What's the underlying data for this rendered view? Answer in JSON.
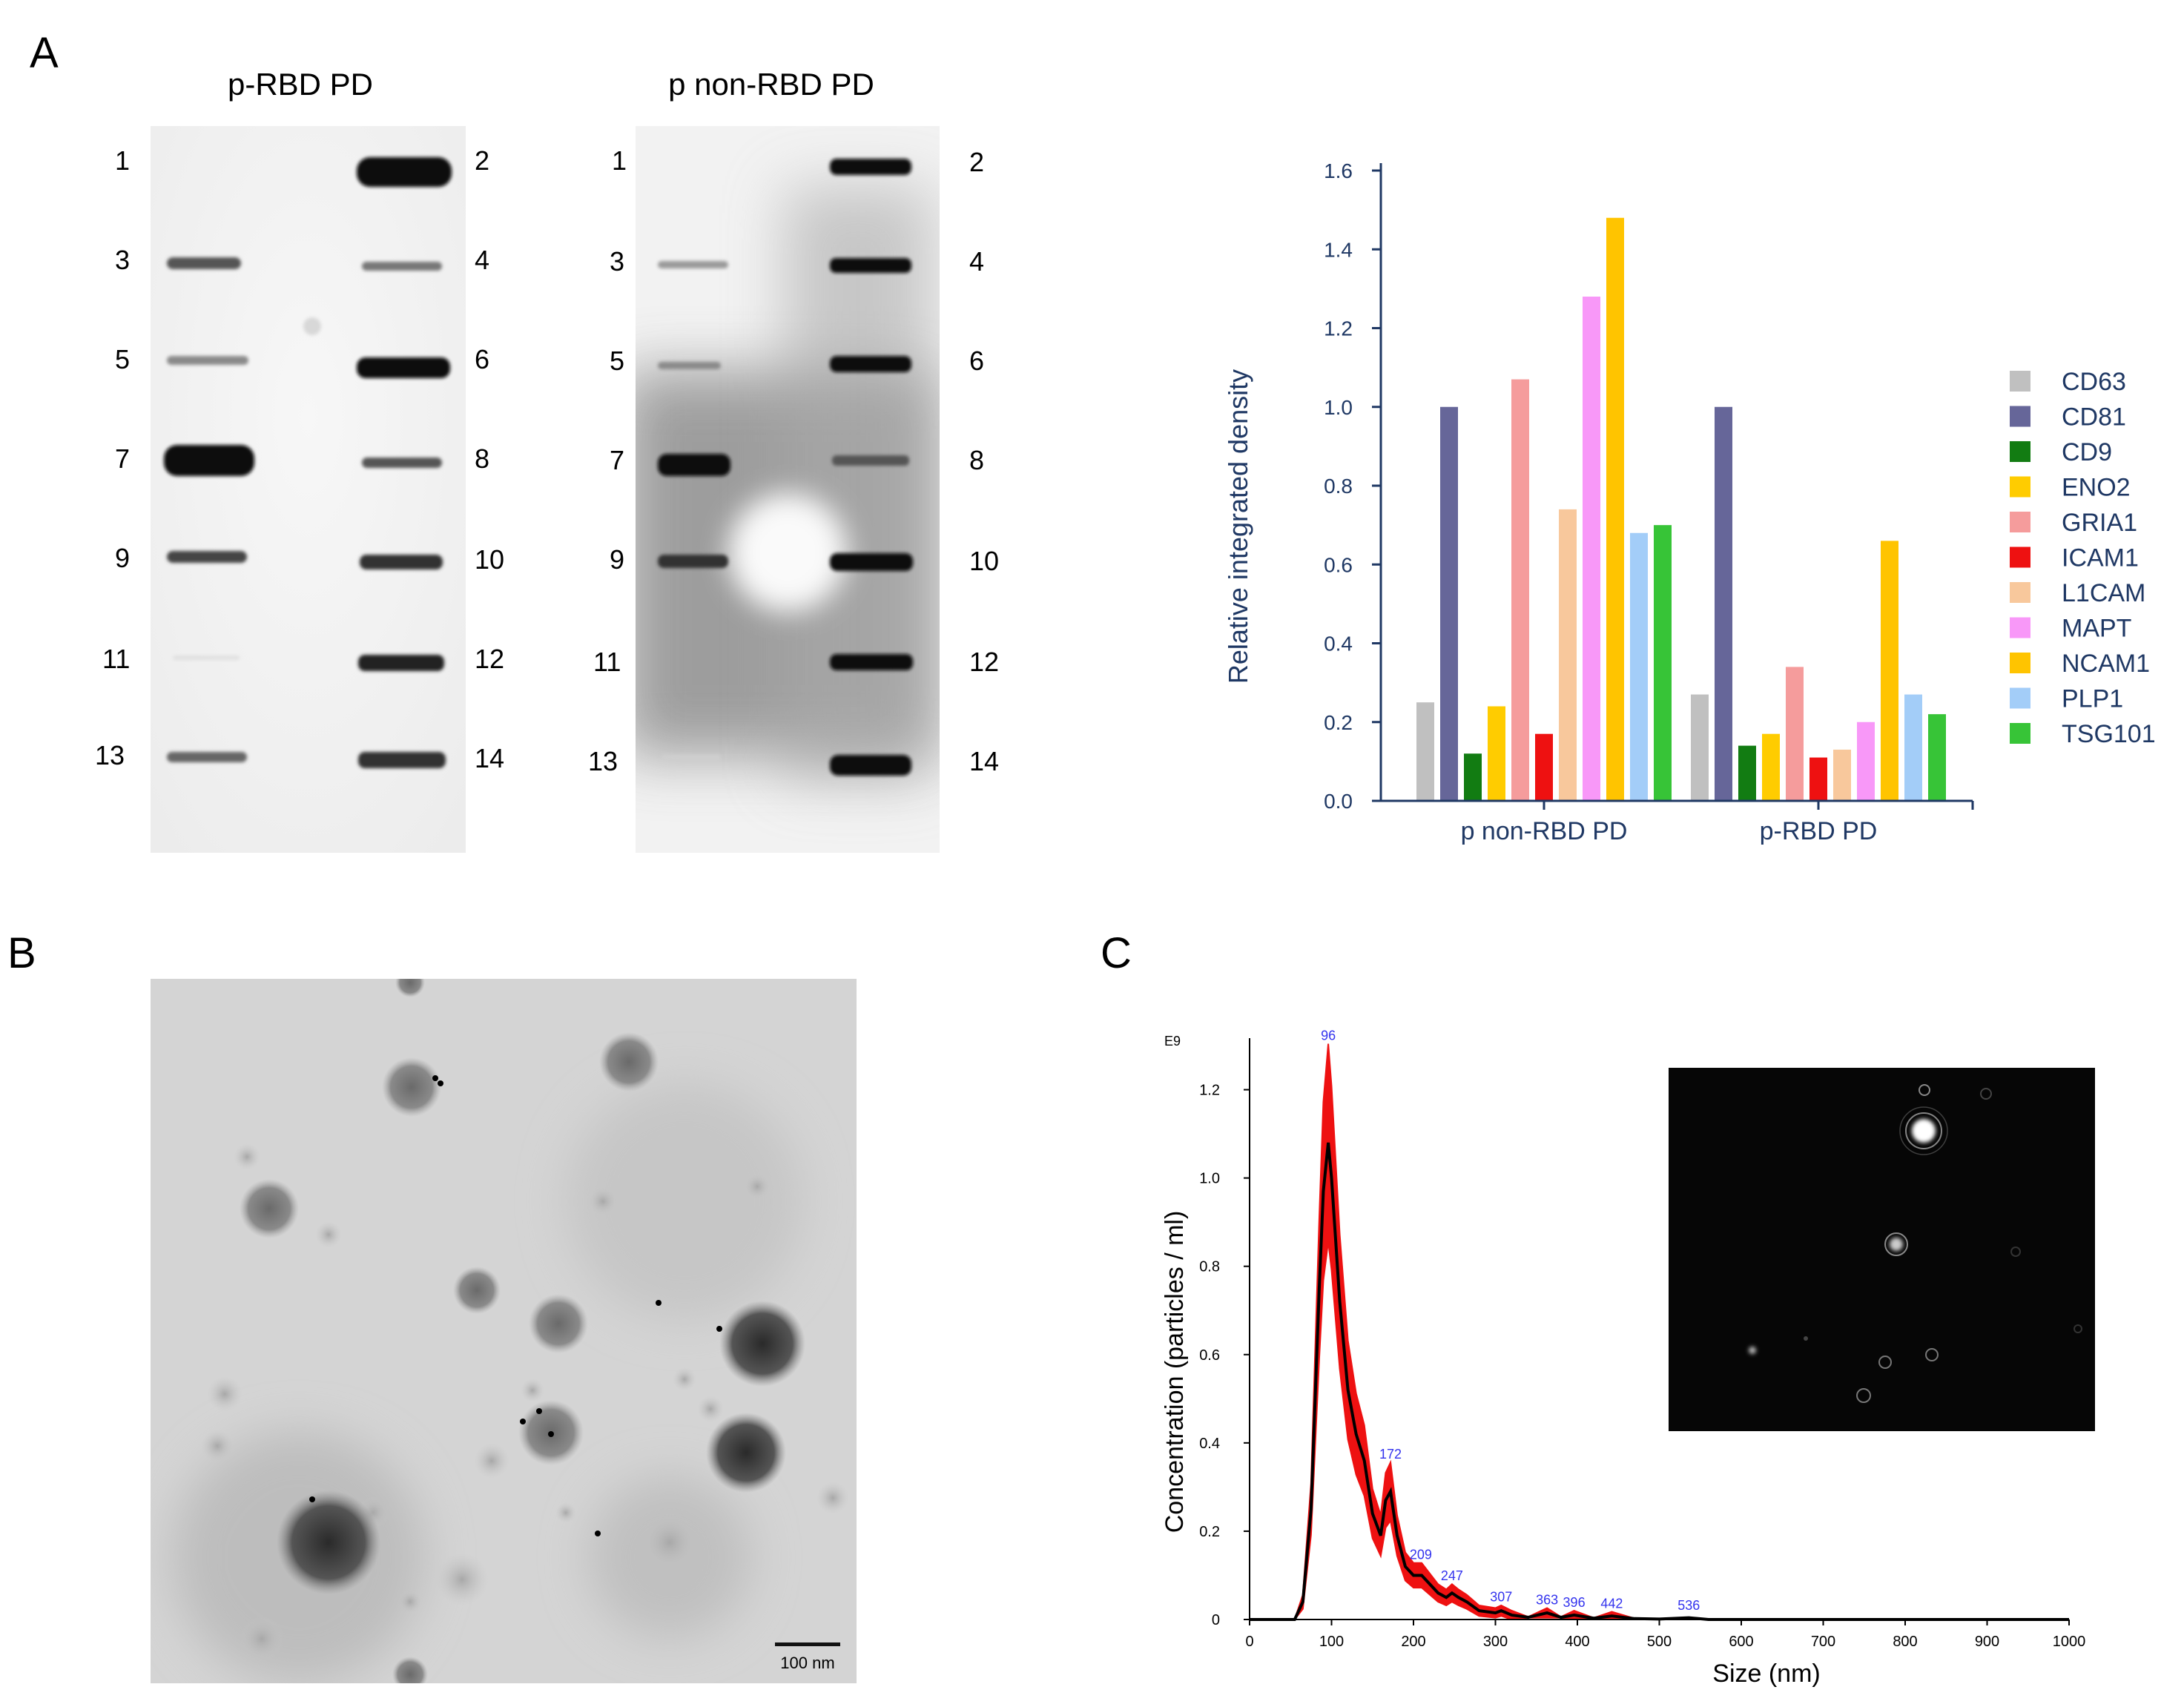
{
  "panels": {
    "a": "A",
    "b": "B",
    "c": "C"
  },
  "blots": [
    {
      "title": "p-RBD PD",
      "left_numbers": [
        "1",
        "3",
        "5",
        "7",
        "9",
        "11",
        "13"
      ],
      "right_numbers": [
        "2",
        "4",
        "6",
        "8",
        "10",
        "12",
        "14"
      ]
    },
    {
      "title": "p non-RBD PD",
      "left_numbers": [
        "1",
        "3",
        "5",
        "7",
        "9",
        "11",
        "13"
      ],
      "right_numbers": [
        "2",
        "4",
        "6",
        "8",
        "10",
        "12",
        "14"
      ]
    }
  ],
  "bar_chart": {
    "ylabel": "Relative integrated density",
    "yticks": [
      "0.0",
      "0.2",
      "0.4",
      "0.6",
      "0.8",
      "1.0",
      "1.2",
      "1.4",
      "1.6"
    ],
    "ylim": [
      0,
      1.6
    ],
    "groups": [
      "p non-RBD PD",
      "p-RBD PD"
    ]
  },
  "tem": {
    "scale_label": "100 nm"
  },
  "nta": {
    "exponent": "E9",
    "ylabel": "Concentration (particles / ml)",
    "xlabel": "Size (nm)",
    "yticks": [
      "0",
      "0.2",
      "0.4",
      "0.6",
      "0.8",
      "1.0",
      "1.2"
    ],
    "xticks": [
      "0",
      "100",
      "200",
      "300",
      "400",
      "500",
      "600",
      "700",
      "800",
      "900",
      "1000"
    ],
    "peak_labels": [
      "96",
      "172",
      "209",
      "247",
      "307",
      "363",
      "396",
      "442",
      "536"
    ]
  },
  "chart_data": [
    {
      "type": "bar",
      "title": "",
      "xlabel": "",
      "ylabel": "Relative integrated density",
      "ylim": [
        0,
        1.6
      ],
      "categories": [
        "p non-RBD PD",
        "p-RBD PD"
      ],
      "legend_position": "right",
      "series": [
        {
          "name": "CD63",
          "color": "#c0c0c0",
          "values": [
            0.25,
            0.27
          ]
        },
        {
          "name": "CD81",
          "color": "#666699",
          "values": [
            1.0,
            1.0
          ]
        },
        {
          "name": "CD9",
          "color": "#127c12",
          "values": [
            0.12,
            0.14
          ]
        },
        {
          "name": "ENO2",
          "color": "#ffcc00",
          "values": [
            0.24,
            0.17
          ]
        },
        {
          "name": "GRIA1",
          "color": "#f59c9c",
          "values": [
            1.07,
            0.34
          ]
        },
        {
          "name": "ICAM1",
          "color": "#ee1111",
          "values": [
            0.17,
            0.11
          ]
        },
        {
          "name": "L1CAM",
          "color": "#f8c89c",
          "values": [
            0.74,
            0.13
          ]
        },
        {
          "name": "MAPT",
          "color": "#f898f8",
          "values": [
            1.28,
            0.2
          ]
        },
        {
          "name": "NCAM1",
          "color": "#ffc400",
          "values": [
            1.48,
            0.66
          ]
        },
        {
          "name": "PLP1",
          "color": "#a3cdf8",
          "values": [
            0.68,
            0.27
          ]
        },
        {
          "name": "TSG101",
          "color": "#37c437",
          "values": [
            0.7,
            0.22
          ]
        }
      ]
    },
    {
      "type": "line",
      "title": "",
      "xlabel": "Size (nm)",
      "ylabel": "Concentration (particles / ml)",
      "xlim": [
        0,
        1000
      ],
      "ylim": [
        0,
        1.3
      ],
      "series": [
        {
          "name": "",
          "color": "#000000",
          "x": [
            0,
            55,
            65,
            75,
            85,
            90,
            96,
            100,
            110,
            120,
            130,
            140,
            150,
            160,
            166,
            172,
            180,
            190,
            200,
            210,
            220,
            230,
            240,
            247,
            255,
            265,
            280,
            300,
            307,
            320,
            340,
            363,
            380,
            396,
            420,
            442,
            470,
            500,
            536,
            560,
            600,
            700,
            800,
            900,
            1000
          ],
          "y": [
            0,
            0,
            0.04,
            0.25,
            0.75,
            0.97,
            1.08,
            1.0,
            0.72,
            0.52,
            0.42,
            0.36,
            0.24,
            0.19,
            0.27,
            0.29,
            0.19,
            0.12,
            0.1,
            0.1,
            0.08,
            0.06,
            0.05,
            0.06,
            0.05,
            0.04,
            0.02,
            0.015,
            0.02,
            0.01,
            0.005,
            0.015,
            0.005,
            0.01,
            0.003,
            0.008,
            0.002,
            0.001,
            0.004,
            0.0,
            0.0,
            0.0,
            0.0,
            0.0,
            0.0
          ]
        }
      ]
    }
  ]
}
